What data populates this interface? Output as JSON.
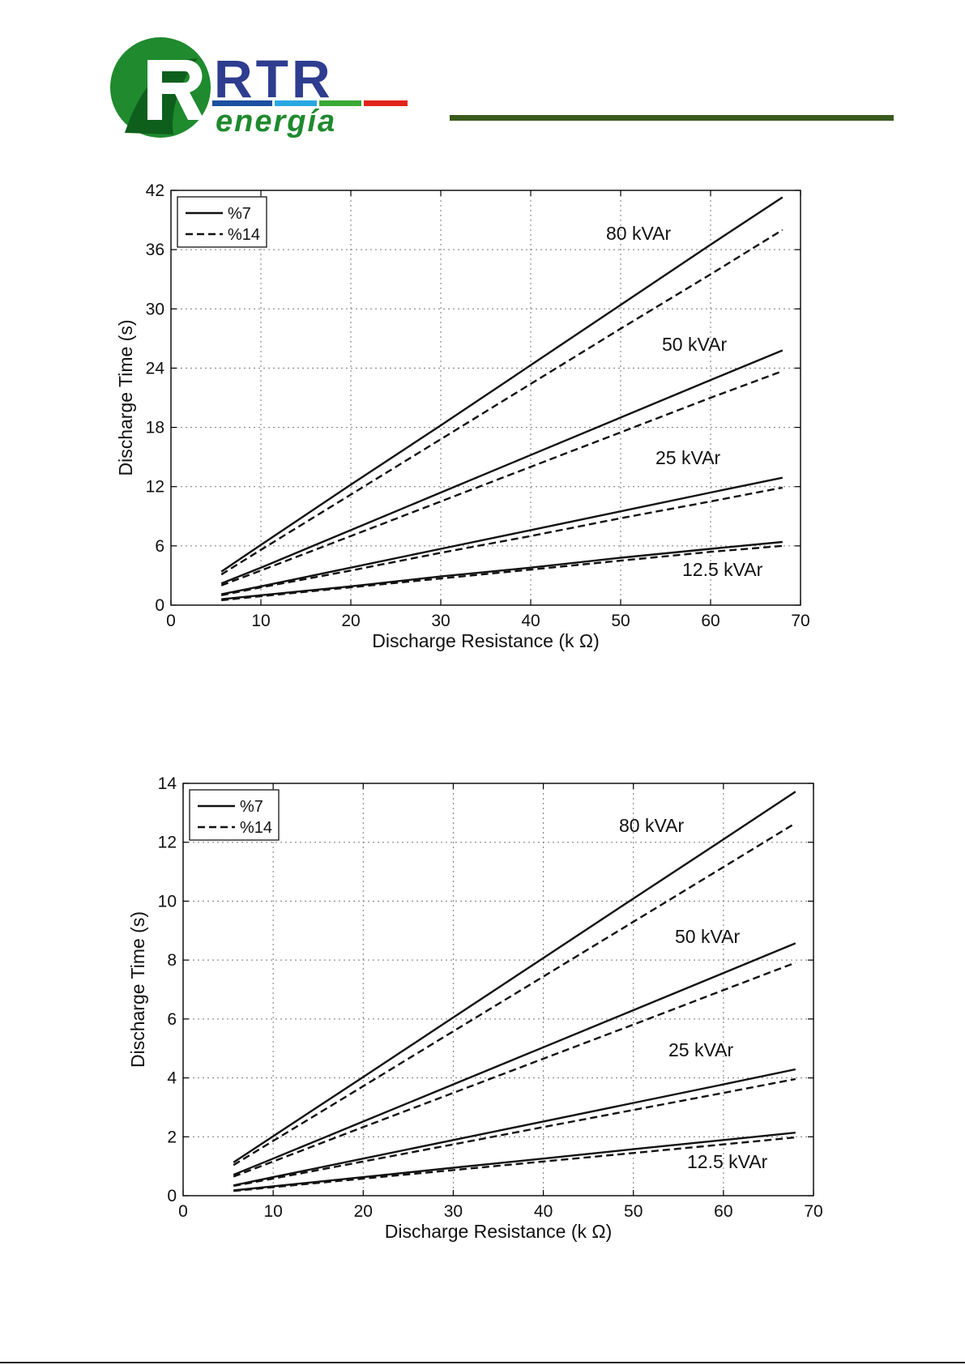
{
  "logo": {
    "wordmark": "RTR",
    "subtitle": "energía",
    "colors": {
      "green": "#1f8a2e",
      "dark_green": "#0e5f1c",
      "blue": "#2e3d8f",
      "stripe_blue": "#1b4fa0",
      "stripe_cyan": "#29a8e0",
      "stripe_green": "#3aa935",
      "stripe_red": "#e2231a"
    }
  },
  "charts": [
    {
      "xlabel": "Discharge Resistance (k Ω)",
      "ylabel": "Discharge Time (s)",
      "xlim": [
        0,
        70
      ],
      "ylim": [
        0,
        42
      ],
      "xticks": [
        "0",
        "10",
        "20",
        "30",
        "40",
        "50",
        "60",
        "70"
      ],
      "yticks": [
        "0",
        "6",
        "12",
        "18",
        "24",
        "30",
        "36",
        "42"
      ],
      "legend": [
        "%7",
        "%14"
      ],
      "annotations": [
        "80 kVAr",
        "50 kVAr",
        "25 kVAr",
        "12.5 kVAr"
      ]
    },
    {
      "xlabel": "Discharge Resistance (k Ω)",
      "ylabel": "Discharge Time (s)",
      "xlim": [
        0,
        70
      ],
      "ylim": [
        0,
        14
      ],
      "xticks": [
        "0",
        "10",
        "20",
        "30",
        "40",
        "50",
        "60",
        "70"
      ],
      "yticks": [
        "0",
        "2",
        "4",
        "6",
        "8",
        "10",
        "12",
        "14"
      ],
      "legend": [
        "%7",
        "%14"
      ],
      "annotations": [
        "80 kVAr",
        "50 kVAr",
        "25 kVAr",
        "12.5 kVAr"
      ]
    }
  ],
  "chart_data": [
    {
      "type": "line",
      "xlabel": "Discharge Resistance (k Ω)",
      "ylabel": "Discharge Time (s)",
      "xlim": [
        0,
        70
      ],
      "ylim": [
        0,
        42
      ],
      "grid": true,
      "legend_position": "top-left",
      "x": [
        5.6,
        10,
        20,
        30,
        40,
        50,
        60,
        68
      ],
      "series": [
        {
          "name": "%7",
          "group": "80 kVAr",
          "style": "solid",
          "values": [
            3.4,
            6.1,
            12.2,
            18.2,
            24.3,
            30.4,
            36.5,
            41.3
          ]
        },
        {
          "name": "%14",
          "group": "80 kVAr",
          "style": "dashed",
          "values": [
            3.1,
            5.6,
            11.2,
            16.8,
            22.4,
            28.0,
            33.5,
            38.0
          ]
        },
        {
          "name": "%7",
          "group": "50 kVAr",
          "style": "solid",
          "values": [
            2.2,
            3.8,
            7.6,
            11.4,
            15.2,
            19.0,
            22.8,
            25.8
          ]
        },
        {
          "name": "%14",
          "group": "50 kVAr",
          "style": "dashed",
          "values": [
            2.0,
            3.5,
            7.0,
            10.5,
            14.0,
            17.5,
            21.0,
            23.7
          ]
        },
        {
          "name": "%7",
          "group": "25 kVAr",
          "style": "solid",
          "values": [
            1.1,
            1.9,
            3.8,
            5.7,
            7.6,
            9.5,
            11.4,
            12.9
          ]
        },
        {
          "name": "%14",
          "group": "25 kVAr",
          "style": "dashed",
          "values": [
            1.0,
            1.8,
            3.5,
            5.3,
            7.0,
            8.8,
            10.5,
            11.9
          ]
        },
        {
          "name": "%7",
          "group": "12.5 kVAr",
          "style": "solid",
          "values": [
            0.6,
            1.0,
            1.9,
            2.9,
            3.8,
            4.8,
            5.7,
            6.4
          ]
        },
        {
          "name": "%14",
          "group": "12.5 kVAr",
          "style": "dashed",
          "values": [
            0.5,
            0.9,
            1.8,
            2.7,
            3.6,
            4.5,
            5.4,
            6.0
          ]
        }
      ]
    },
    {
      "type": "line",
      "xlabel": "Discharge Resistance (k Ω)",
      "ylabel": "Discharge Time (s)",
      "xlim": [
        0,
        70
      ],
      "ylim": [
        0,
        14
      ],
      "grid": true,
      "legend_position": "top-left",
      "x": [
        5.6,
        10,
        20,
        30,
        40,
        50,
        60,
        68
      ],
      "series": [
        {
          "name": "%7",
          "group": "80 kVAr",
          "style": "solid",
          "values": [
            1.13,
            2.02,
            4.03,
            6.05,
            8.07,
            10.09,
            12.1,
            13.72
          ]
        },
        {
          "name": "%14",
          "group": "80 kVAr",
          "style": "dashed",
          "values": [
            1.04,
            1.86,
            3.72,
            5.58,
            7.44,
            9.3,
            11.16,
            12.65
          ]
        },
        {
          "name": "%7",
          "group": "50 kVAr",
          "style": "solid",
          "values": [
            0.71,
            1.26,
            2.52,
            3.78,
            5.04,
            6.3,
            7.56,
            8.57
          ]
        },
        {
          "name": "%14",
          "group": "50 kVAr",
          "style": "dashed",
          "values": [
            0.65,
            1.16,
            2.33,
            3.49,
            4.65,
            5.81,
            6.98,
            7.91
          ]
        },
        {
          "name": "%7",
          "group": "25 kVAr",
          "style": "solid",
          "values": [
            0.35,
            0.63,
            1.26,
            1.89,
            2.52,
            3.15,
            3.78,
            4.29
          ]
        },
        {
          "name": "%14",
          "group": "25 kVAr",
          "style": "dashed",
          "values": [
            0.33,
            0.58,
            1.16,
            1.74,
            2.33,
            2.91,
            3.49,
            3.96
          ]
        },
        {
          "name": "%7",
          "group": "12.5 kVAr",
          "style": "solid",
          "values": [
            0.18,
            0.32,
            0.63,
            0.95,
            1.26,
            1.58,
            1.89,
            2.14
          ]
        },
        {
          "name": "%14",
          "group": "12.5 kVAr",
          "style": "dashed",
          "values": [
            0.16,
            0.29,
            0.58,
            0.87,
            1.16,
            1.45,
            1.74,
            1.98
          ]
        }
      ]
    }
  ]
}
